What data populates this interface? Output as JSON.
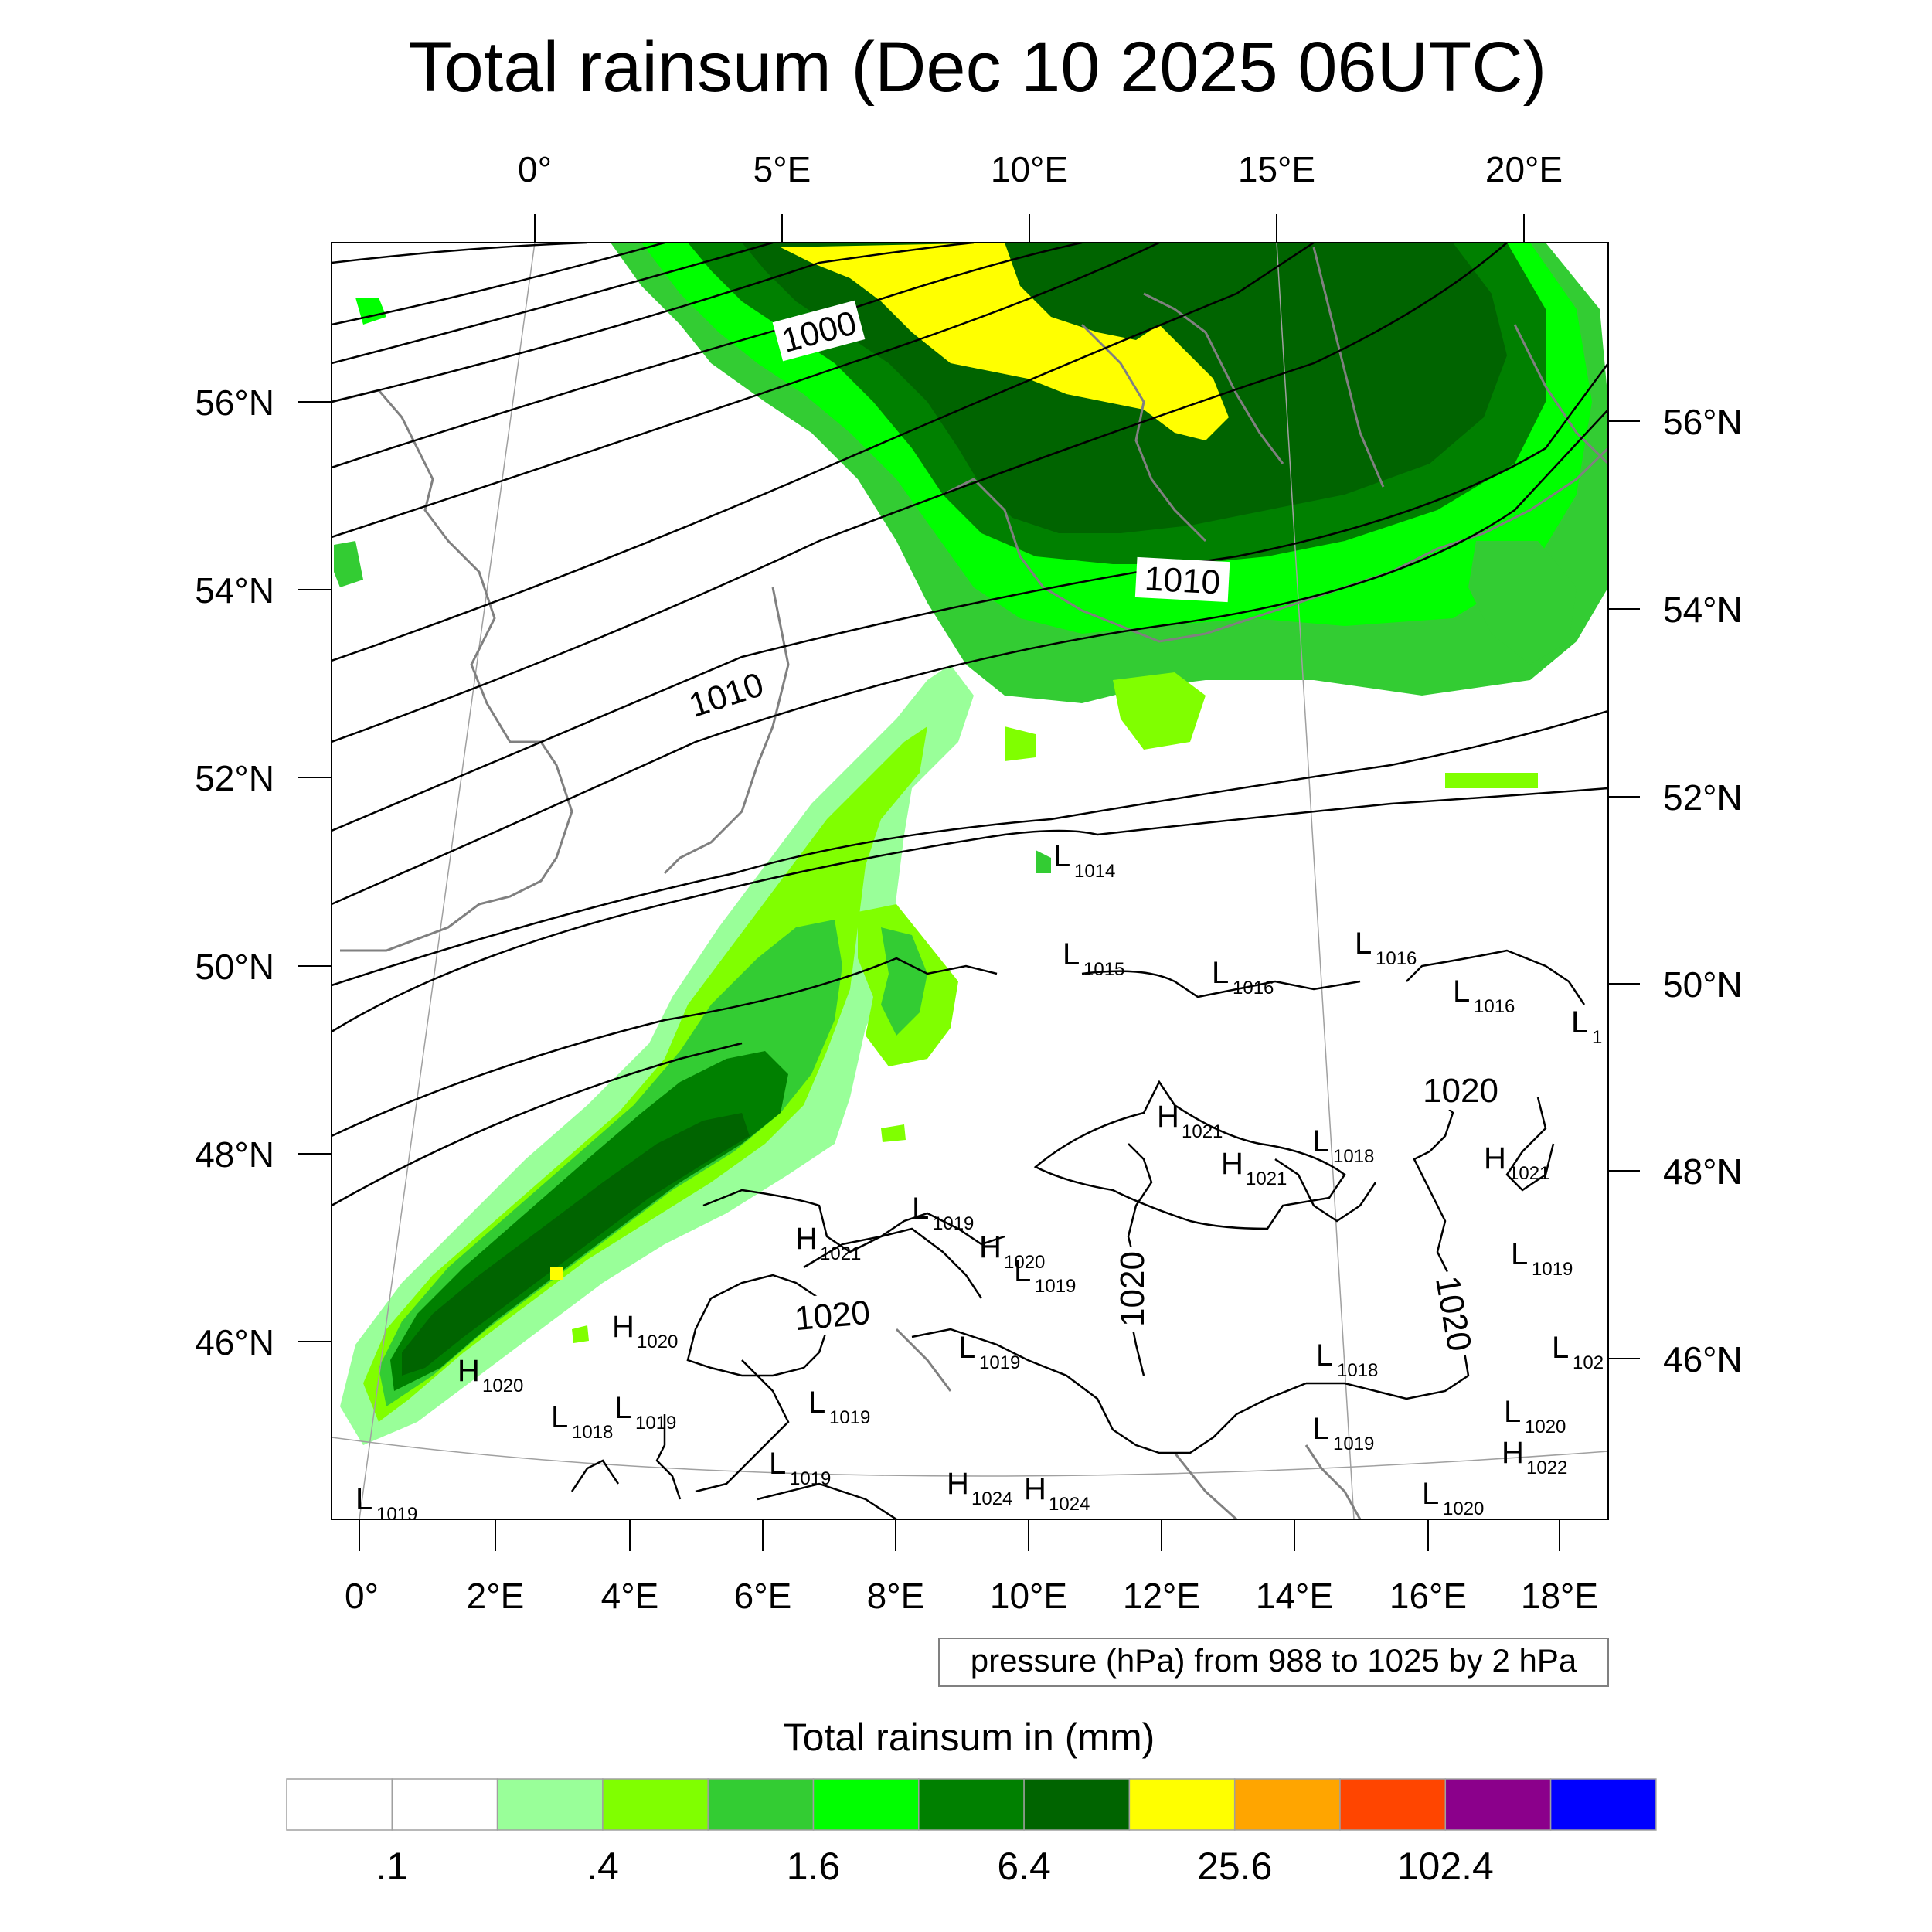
{
  "title": "Total rainsum (Dec 10 2025 06UTC)",
  "top_longitude_labels": [
    "0°",
    "5°E",
    "10°E",
    "15°E",
    "20°E"
  ],
  "bottom_longitude_labels": [
    "0°",
    "2°E",
    "4°E",
    "6°E",
    "8°E",
    "10°E",
    "12°E",
    "14°E",
    "16°E",
    "18°E"
  ],
  "left_latitude_labels": [
    "56°N",
    "54°N",
    "52°N",
    "50°N",
    "48°N",
    "46°N"
  ],
  "right_latitude_labels": [
    "56°N",
    "54°N",
    "52°N",
    "50°N",
    "48°N",
    "46°N"
  ],
  "contour_info": "pressure (hPa) from 988 to 1025 by 2 hPa",
  "isobar_labels": [
    "1000",
    "1010",
    "1010",
    "1020",
    "1020",
    "1020",
    "1020"
  ],
  "pressure_centers": [
    {
      "letter": "L",
      "value": "1014"
    },
    {
      "letter": "L",
      "value": "1015"
    },
    {
      "letter": "L",
      "value": "1016"
    },
    {
      "letter": "L",
      "value": "1016"
    },
    {
      "letter": "L",
      "value": "1016"
    },
    {
      "letter": "L",
      "value": "1"
    },
    {
      "letter": "H",
      "value": "1021"
    },
    {
      "letter": "H",
      "value": "1021"
    },
    {
      "letter": "L",
      "value": "1018"
    },
    {
      "letter": "H",
      "value": "1021"
    },
    {
      "letter": "L",
      "value": "1019"
    },
    {
      "letter": "H",
      "value": "1021"
    },
    {
      "letter": "H",
      "value": "1020"
    },
    {
      "letter": "L",
      "value": "1019"
    },
    {
      "letter": "L",
      "value": "1019"
    },
    {
      "letter": "H",
      "value": "1020"
    },
    {
      "letter": "H",
      "value": "1020"
    },
    {
      "letter": "L",
      "value": "1018"
    },
    {
      "letter": "L",
      "value": "1019"
    },
    {
      "letter": "L",
      "value": "1019"
    },
    {
      "letter": "L",
      "value": "1019"
    },
    {
      "letter": "L",
      "value": "1018"
    },
    {
      "letter": "L",
      "value": "102"
    },
    {
      "letter": "L",
      "value": "1020"
    },
    {
      "letter": "L",
      "value": "1019"
    },
    {
      "letter": "H",
      "value": "1022"
    },
    {
      "letter": "L",
      "value": "1019"
    },
    {
      "letter": "H",
      "value": "1024"
    },
    {
      "letter": "H",
      "value": "1024"
    },
    {
      "letter": "L",
      "value": "1020"
    },
    {
      "letter": "L",
      "value": "1019"
    }
  ],
  "colorbar": {
    "title": "Total rainsum in (mm)",
    "colors": [
      "#ffffff",
      "#ffffff",
      "#99ff99",
      "#80ff00",
      "#33cc33",
      "#00ff00",
      "#008000",
      "#006400",
      "#ffff00",
      "#ffa500",
      "#ff4500",
      "#8b008b",
      "#0000ff"
    ],
    "labels": [
      ".1",
      ".4",
      "1.6",
      "6.4",
      "25.6",
      "102.4"
    ]
  },
  "map_colors": {
    "land_border": "#808080",
    "isobar": "#000000",
    "graticule": "#a0a0a0"
  }
}
